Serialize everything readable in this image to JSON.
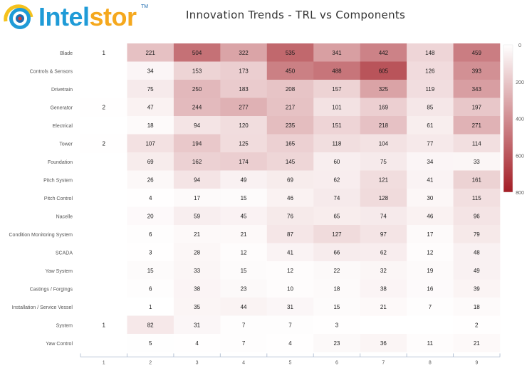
{
  "logo": {
    "brand_part1": "Intel",
    "brand_part2": "stor",
    "trademark": "TM"
  },
  "chart_data": {
    "type": "heatmap",
    "title": "Innovation Trends - TRL vs Components",
    "xlabel": "",
    "ylabel": "",
    "x_categories": [
      "1",
      "2",
      "3",
      "4",
      "5",
      "6",
      "7",
      "8",
      "9"
    ],
    "y_categories": [
      "Blade",
      "Controls & Sensors",
      "Drivetrain",
      "Generator",
      "Electrical",
      "Tower",
      "Foundation",
      "Pitch System",
      "Pitch Control",
      "Nacelle",
      "Condition Monitoring System",
      "SCADA",
      "Yaw System",
      "Castings / Forgings",
      "Installation / Service Vessel",
      "System",
      "Yaw Control"
    ],
    "values": [
      [
        1,
        221,
        504,
        322,
        535,
        341,
        442,
        148,
        459
      ],
      [
        null,
        34,
        153,
        173,
        450,
        488,
        605,
        126,
        393
      ],
      [
        null,
        75,
        250,
        183,
        208,
        157,
        325,
        119,
        343
      ],
      [
        2,
        47,
        244,
        277,
        217,
        101,
        169,
        85,
        197
      ],
      [
        null,
        18,
        94,
        120,
        235,
        151,
        218,
        61,
        271
      ],
      [
        2,
        107,
        194,
        125,
        165,
        118,
        104,
        77,
        114
      ],
      [
        null,
        69,
        162,
        174,
        145,
        60,
        75,
        34,
        33
      ],
      [
        null,
        26,
        94,
        49,
        69,
        62,
        121,
        41,
        161
      ],
      [
        null,
        4,
        17,
        15,
        46,
        74,
        128,
        30,
        115
      ],
      [
        null,
        20,
        59,
        45,
        76,
        65,
        74,
        46,
        96
      ],
      [
        null,
        6,
        21,
        21,
        87,
        127,
        97,
        17,
        79
      ],
      [
        null,
        3,
        28,
        12,
        41,
        66,
        62,
        12,
        48
      ],
      [
        null,
        15,
        33,
        15,
        12,
        22,
        32,
        19,
        49
      ],
      [
        null,
        6,
        38,
        23,
        10,
        18,
        38,
        16,
        39
      ],
      [
        null,
        1,
        35,
        44,
        31,
        15,
        21,
        7,
        18
      ],
      [
        1,
        82,
        31,
        7,
        7,
        3,
        null,
        null,
        2
      ],
      [
        null,
        5,
        4,
        7,
        4,
        23,
        36,
        11,
        21
      ]
    ],
    "color_scale": {
      "min": 0,
      "max": 800,
      "ticks": [
        0,
        200,
        400,
        600,
        800
      ],
      "low_color": "#ffffff",
      "high_color": "#a31d25"
    },
    "legend_position": "right",
    "grid": false
  }
}
